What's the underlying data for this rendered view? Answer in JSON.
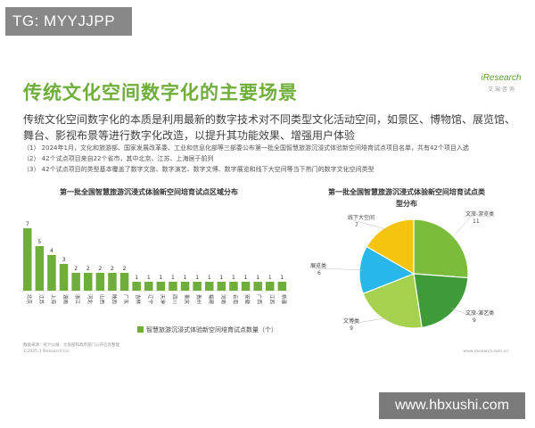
{
  "watermark_top": "TG: MYYJJPP",
  "watermark_bottom": "www.hbxushi.com",
  "brand": {
    "logo": "iResearch",
    "sub": "艾 瑞 咨 询"
  },
  "title": "传统文化空间数字化的主要场景",
  "lead": "传统文化空间数字化的本质是利用最新的数字技术对不同类型文化活动空间，如景区、博物馆、展览馆、舞台、影视布景等进行数字化改造，以提升其功能效果、增强用户体验",
  "notes": [
    "（1） 2024年1月，文化和旅游部、国家发展改革委、工业和信息化部等三部委公布第一批全国智慧旅游沉浸式体验新空间培育试点项目名单，共有42个项目入选",
    "（2） 42个试点项目来自22个省市，其中北京、江苏、上海居于前列",
    "（3） 42个试点项目的类型基本覆盖了数字文旅、数字演艺、数字文博、数字展览和线下大空间等当下热门的数字文化空间类型"
  ],
  "footer_left": [
    "数据来源：统计公报、文旅部和政府部门公开信息整理",
    "©2025.3 iResearch Inc."
  ],
  "footer_right": "www.iresearch.com.cn",
  "colors": {
    "accent": "#6fae3a",
    "bar": "#6fae3a"
  },
  "chart_data": [
    {
      "type": "bar",
      "title": "第一批全国智慧旅游沉浸式体验新空间培育试点区域分布",
      "categories": [
        "北京",
        "江苏",
        "上海",
        "湖南",
        "浙江",
        "河北",
        "山西",
        "陕西",
        "广东",
        "吉林",
        "辽宁",
        "天津",
        "四川",
        "重庆",
        "贵州",
        "福建",
        "河南",
        "云南",
        "安徽",
        "广西",
        "江西",
        "新疆"
      ],
      "series": [
        {
          "name": "智慧旅游沉浸式体验新空间培育试点数量（个）",
          "values": [
            7,
            5,
            4,
            3,
            2,
            2,
            2,
            2,
            2,
            1,
            1,
            1,
            1,
            1,
            1,
            1,
            1,
            1,
            1,
            1,
            1,
            1
          ]
        }
      ],
      "ylim": [
        0,
        8
      ],
      "data_labels": true,
      "legend": "bottom"
    },
    {
      "type": "pie",
      "title": "第一批全国智慧旅游沉浸式体验新空间培育试点类型分布",
      "slices": [
        {
          "label": "文旅-游览类",
          "value": 11,
          "color": "#7cbc3c"
        },
        {
          "label": "文旅-演艺类",
          "value": 9,
          "color": "#3f9a3a"
        },
        {
          "label": "文博类",
          "value": 9,
          "color": "#a5d14f"
        },
        {
          "label": "展览类",
          "value": 6,
          "color": "#29b6e8"
        },
        {
          "label": "线下大空间",
          "value": 7,
          "color": "#f5c40f"
        }
      ]
    }
  ]
}
